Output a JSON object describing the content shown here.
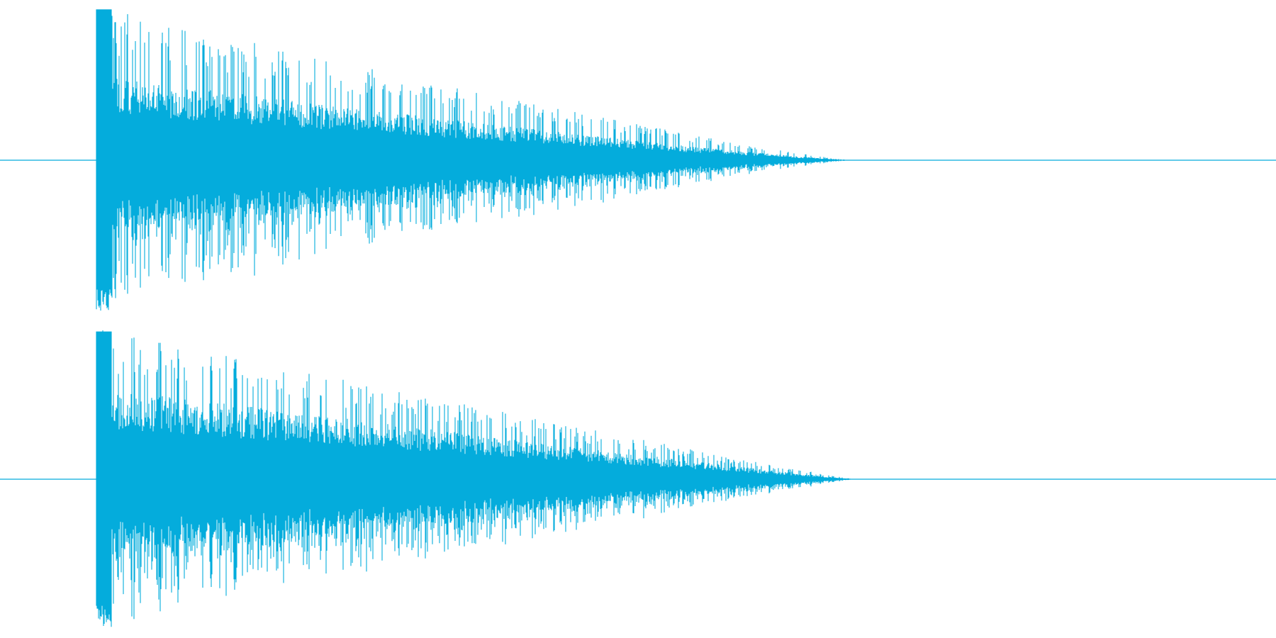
{
  "waveform": {
    "color": "#04acdc",
    "channels": [
      {
        "channel": "left",
        "seed": 7,
        "peak": 1.0,
        "attack_level": 0.55,
        "decay_shape": 1.15
      },
      {
        "channel": "right",
        "seed": 19,
        "peak": 0.98,
        "attack_level": 0.6,
        "decay_shape": 1.05
      }
    ]
  }
}
